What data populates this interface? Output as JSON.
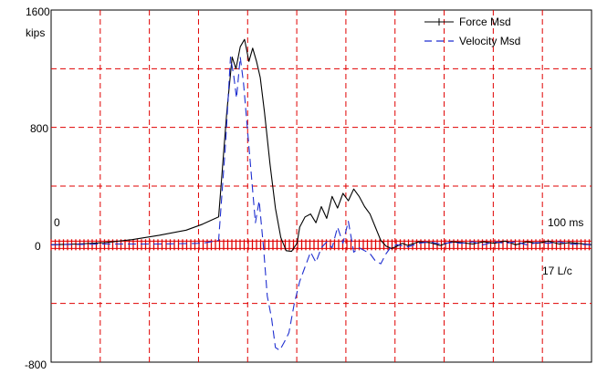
{
  "chart_data": {
    "type": "line",
    "y_unit": "kips",
    "ylim": [
      -800,
      1600
    ],
    "y_ticks": [
      "1600",
      "800",
      "0",
      "-800"
    ],
    "y_tick_values": [
      1600,
      800,
      0,
      -800
    ],
    "xlim": [
      0,
      100
    ],
    "x_start_label": "0",
    "x_end_label": "100 ms",
    "lc_label": "17 L/c",
    "grid": true,
    "legend_position": "top-right",
    "colors": {
      "grid": "#e00000",
      "force": "#000000",
      "velocity": "#1f2fd0",
      "axis_marks": "#e00000"
    },
    "series": [
      {
        "name": "Force Msd",
        "style": "solid",
        "points": [
          [
            0,
            0
          ],
          [
            5,
            5
          ],
          [
            10,
            15
          ],
          [
            15,
            35
          ],
          [
            20,
            65
          ],
          [
            25,
            100
          ],
          [
            28,
            140
          ],
          [
            31,
            190
          ],
          [
            32.5,
            900
          ],
          [
            33.5,
            1280
          ],
          [
            34.2,
            1200
          ],
          [
            35,
            1350
          ],
          [
            35.8,
            1400
          ],
          [
            36.6,
            1250
          ],
          [
            37.3,
            1340
          ],
          [
            38,
            1250
          ],
          [
            38.7,
            1140
          ],
          [
            39.5,
            900
          ],
          [
            40.5,
            550
          ],
          [
            41.5,
            250
          ],
          [
            42.5,
            50
          ],
          [
            43.5,
            -40
          ],
          [
            44.5,
            -45
          ],
          [
            45.5,
            10
          ],
          [
            46,
            120
          ],
          [
            47,
            190
          ],
          [
            48,
            210
          ],
          [
            49,
            150
          ],
          [
            50,
            260
          ],
          [
            51,
            180
          ],
          [
            52,
            330
          ],
          [
            53,
            250
          ],
          [
            54,
            350
          ],
          [
            55,
            300
          ],
          [
            56,
            380
          ],
          [
            57,
            330
          ],
          [
            58,
            260
          ],
          [
            59,
            210
          ],
          [
            60,
            120
          ],
          [
            61,
            30
          ],
          [
            62,
            -10
          ],
          [
            63,
            -25
          ],
          [
            64,
            -10
          ],
          [
            65,
            10
          ],
          [
            66,
            -5
          ],
          [
            68,
            20
          ],
          [
            70,
            15
          ],
          [
            72,
            -5
          ],
          [
            74,
            20
          ],
          [
            76,
            15
          ],
          [
            78,
            5
          ],
          [
            80,
            20
          ],
          [
            82,
            10
          ],
          [
            84,
            25
          ],
          [
            86,
            0
          ],
          [
            88,
            20
          ],
          [
            90,
            10
          ],
          [
            92,
            25
          ],
          [
            94,
            5
          ],
          [
            96,
            15
          ],
          [
            100,
            0
          ]
        ]
      },
      {
        "name": "Velocity Msd",
        "style": "dashed",
        "points": [
          [
            0,
            0
          ],
          [
            10,
            5
          ],
          [
            20,
            5
          ],
          [
            28,
            10
          ],
          [
            31,
            30
          ],
          [
            32.3,
            700
          ],
          [
            33.2,
            1280
          ],
          [
            33.8,
            1150
          ],
          [
            34.3,
            1000
          ],
          [
            35,
            1280
          ],
          [
            35.6,
            1100
          ],
          [
            36.3,
            800
          ],
          [
            37,
            500
          ],
          [
            37.8,
            150
          ],
          [
            38.5,
            300
          ],
          [
            39.3,
            -20
          ],
          [
            40,
            -350
          ],
          [
            40.8,
            -500
          ],
          [
            41.5,
            -700
          ],
          [
            42.3,
            -720
          ],
          [
            43.2,
            -660
          ],
          [
            44,
            -600
          ],
          [
            45,
            -400
          ],
          [
            46,
            -250
          ],
          [
            47,
            -150
          ],
          [
            48,
            -50
          ],
          [
            49,
            -120
          ],
          [
            50,
            -20
          ],
          [
            51,
            20
          ],
          [
            52,
            -20
          ],
          [
            53,
            120
          ],
          [
            54,
            10
          ],
          [
            55,
            160
          ],
          [
            56,
            -50
          ],
          [
            57,
            -20
          ],
          [
            58,
            -40
          ],
          [
            59,
            -60
          ],
          [
            60,
            -110
          ],
          [
            61,
            -130
          ],
          [
            62,
            -60
          ],
          [
            63,
            -10
          ],
          [
            64,
            0
          ],
          [
            66,
            -15
          ],
          [
            68,
            10
          ],
          [
            70,
            20
          ],
          [
            72,
            5
          ],
          [
            74,
            15
          ],
          [
            76,
            10
          ],
          [
            78,
            20
          ],
          [
            80,
            0
          ],
          [
            82,
            20
          ],
          [
            84,
            10
          ],
          [
            86,
            20
          ],
          [
            88,
            0
          ],
          [
            90,
            15
          ],
          [
            92,
            10
          ],
          [
            94,
            20
          ],
          [
            96,
            5
          ],
          [
            100,
            0
          ]
        ]
      }
    ]
  }
}
